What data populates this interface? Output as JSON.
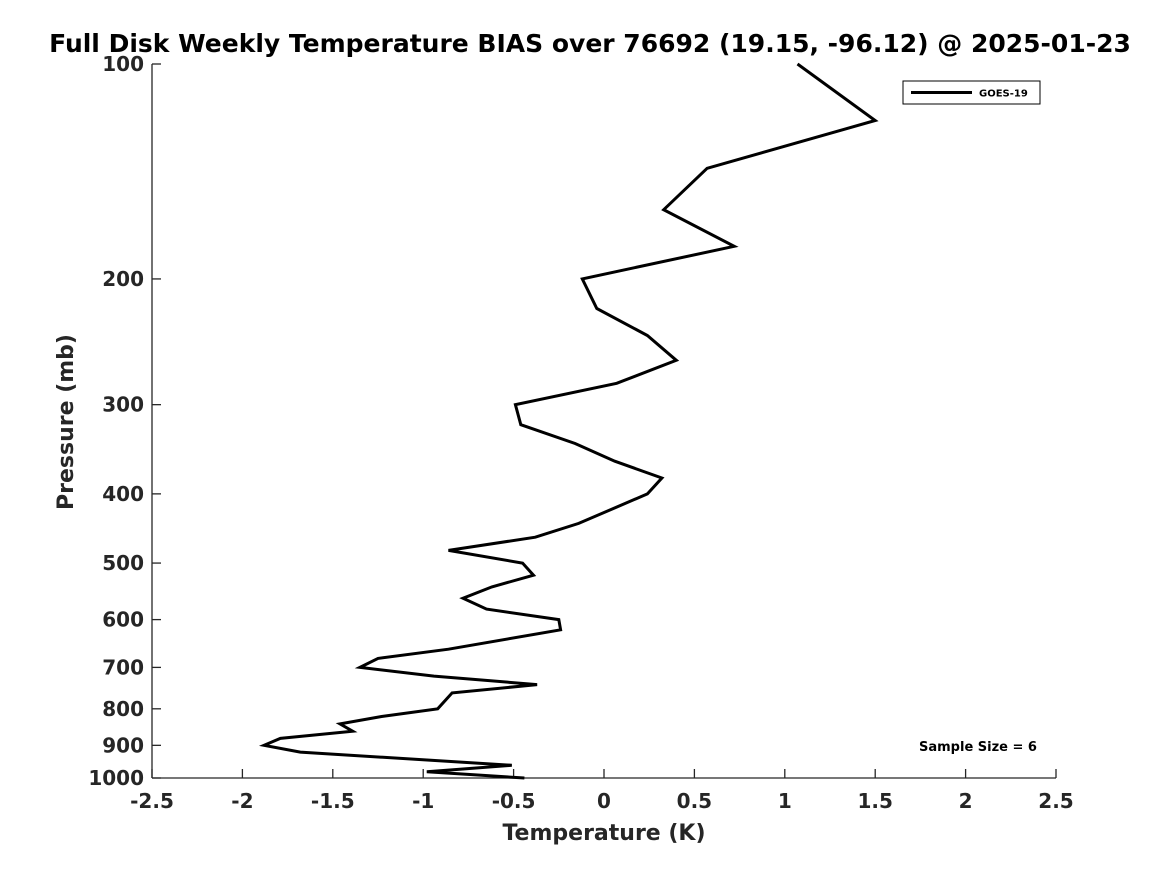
{
  "chart_data": {
    "type": "line",
    "title": "Full Disk Weekly Temperature BIAS over 76692 (19.15, -96.12) @ 2025-01-23",
    "xlabel": "Temperature (K)",
    "ylabel": "Pressure (mb)",
    "xlim": [
      -2.5,
      2.5
    ],
    "ylim": [
      1000,
      100
    ],
    "y_scale": "log",
    "y_reversed": true,
    "x_ticks": [
      -2.5,
      -2,
      -1.5,
      -1,
      -0.5,
      0,
      0.5,
      1,
      1.5,
      2,
      2.5
    ],
    "x_tick_labels": [
      "-2.5",
      "-2",
      "-1.5",
      "-1",
      "-0.5",
      "0",
      "0.5",
      "1",
      "1.5",
      "2",
      "2.5"
    ],
    "y_ticks": [
      100,
      200,
      300,
      400,
      500,
      600,
      700,
      800,
      900,
      1000
    ],
    "y_tick_labels": [
      "100",
      "200",
      "300",
      "400",
      "500",
      "600",
      "700",
      "800",
      "900",
      "1000"
    ],
    "grid": false,
    "legend_position": "top-right",
    "series": [
      {
        "name": "GOES-19",
        "color": "#000000",
        "points": [
          {
            "x": 1.07,
            "p": 100
          },
          {
            "x": 1.5,
            "p": 120
          },
          {
            "x": 0.57,
            "p": 140
          },
          {
            "x": 0.33,
            "p": 160
          },
          {
            "x": 0.72,
            "p": 180
          },
          {
            "x": -0.12,
            "p": 200
          },
          {
            "x": -0.04,
            "p": 220
          },
          {
            "x": 0.24,
            "p": 240
          },
          {
            "x": 0.4,
            "p": 260
          },
          {
            "x": 0.07,
            "p": 280
          },
          {
            "x": -0.49,
            "p": 300
          },
          {
            "x": -0.46,
            "p": 320
          },
          {
            "x": -0.16,
            "p": 340
          },
          {
            "x": 0.06,
            "p": 360
          },
          {
            "x": 0.32,
            "p": 380
          },
          {
            "x": 0.24,
            "p": 400
          },
          {
            "x": -0.14,
            "p": 440
          },
          {
            "x": -0.38,
            "p": 460
          },
          {
            "x": -0.86,
            "p": 480
          },
          {
            "x": -0.45,
            "p": 500
          },
          {
            "x": -0.39,
            "p": 520
          },
          {
            "x": -0.62,
            "p": 540
          },
          {
            "x": -0.78,
            "p": 560
          },
          {
            "x": -0.65,
            "p": 580
          },
          {
            "x": -0.25,
            "p": 600
          },
          {
            "x": -0.24,
            "p": 620
          },
          {
            "x": -0.86,
            "p": 660
          },
          {
            "x": -1.25,
            "p": 680
          },
          {
            "x": -1.35,
            "p": 700
          },
          {
            "x": -0.94,
            "p": 720
          },
          {
            "x": -0.37,
            "p": 740
          },
          {
            "x": -0.84,
            "p": 760
          },
          {
            "x": -0.92,
            "p": 800
          },
          {
            "x": -1.23,
            "p": 820
          },
          {
            "x": -1.46,
            "p": 840
          },
          {
            "x": -1.39,
            "p": 860
          },
          {
            "x": -1.79,
            "p": 880
          },
          {
            "x": -1.88,
            "p": 900
          },
          {
            "x": -1.68,
            "p": 920
          },
          {
            "x": -0.51,
            "p": 960
          },
          {
            "x": -0.98,
            "p": 980
          },
          {
            "x": -0.44,
            "p": 1000
          }
        ]
      }
    ],
    "annotation": "Sample Size = 6"
  }
}
